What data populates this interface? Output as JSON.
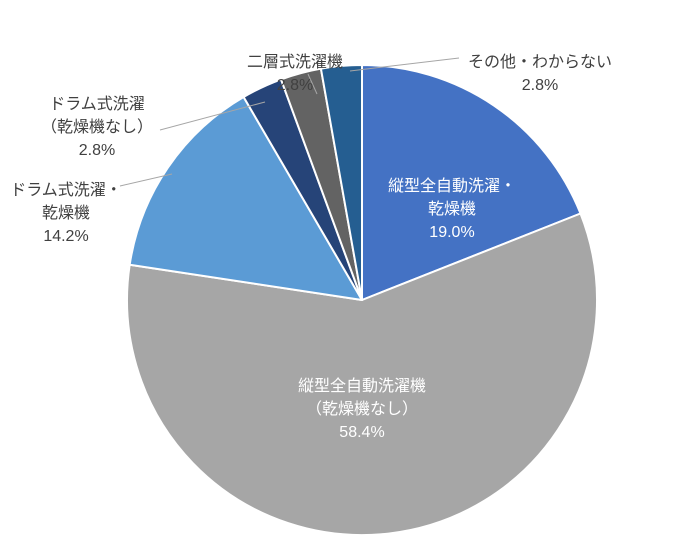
{
  "chart_data": {
    "type": "pie",
    "title": "",
    "unit": "%",
    "total": 100,
    "start_angle_deg": 0,
    "direction": "clockwise",
    "legend": "none",
    "background": "#FFFFFF",
    "label_color_inside": "#FFFFFF",
    "label_color_outside": "#404040",
    "leader_line_color": "#A6A6A6",
    "slices": [
      {
        "name": "縦型全自動洗濯・乾燥機",
        "value": 19.0,
        "pct": "19.0%",
        "color": "#4472C4",
        "label_placement": "inside",
        "label_text": "縦型全自動洗濯・\n乾燥機"
      },
      {
        "name": "縦型全自動洗濯機（乾燥機なし）",
        "value": 58.4,
        "pct": "58.4%",
        "color": "#A6A6A6",
        "label_placement": "inside",
        "label_text": "縦型全自動洗濯機\n（乾燥機なし）"
      },
      {
        "name": "ドラム式洗濯・乾燥機",
        "value": 14.2,
        "pct": "14.2%",
        "color": "#5B9BD5",
        "label_placement": "outside",
        "label_text": "ドラム式洗濯・\n乾燥機"
      },
      {
        "name": "ドラム式洗濯（乾燥機なし）",
        "value": 2.8,
        "pct": "2.8%",
        "color": "#264478",
        "label_placement": "outside",
        "label_text": "ドラム式洗濯\n（乾燥機なし）"
      },
      {
        "name": "二層式洗濯機",
        "value": 2.8,
        "pct": "2.8%",
        "color": "#636363",
        "label_placement": "outside",
        "label_text": "二層式洗濯機"
      },
      {
        "name": "その他・わからない",
        "value": 2.8,
        "pct": "2.8%",
        "color": "#255E91",
        "label_placement": "outside",
        "label_text": "その他・わからない"
      }
    ]
  }
}
